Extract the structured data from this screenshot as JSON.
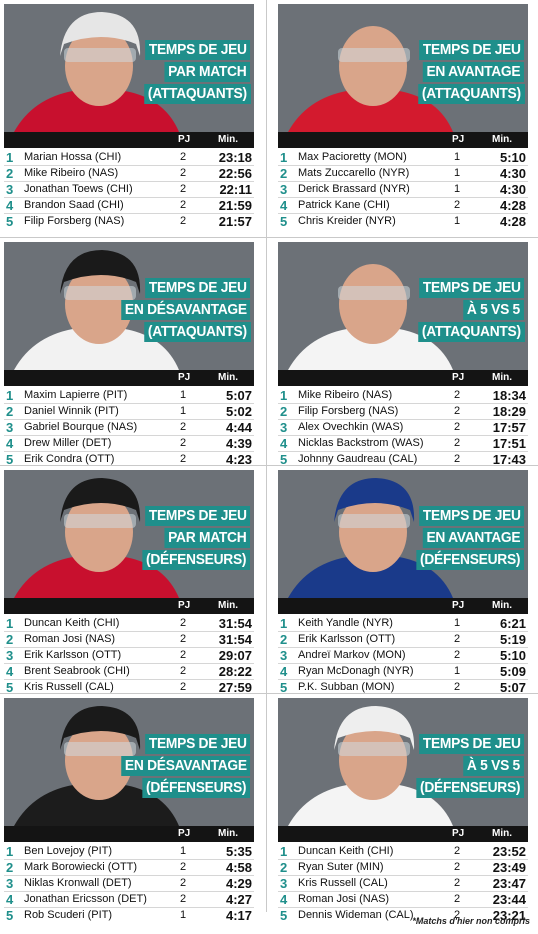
{
  "table_headers": {
    "pj": "PJ",
    "min": "Min."
  },
  "footnote": "*Matchs d'hier non compris",
  "panels": [
    {
      "title": [
        "TEMPS DE JEU",
        "PAR MATCH",
        "(ATTAQUANTS)"
      ],
      "photo": "player-photo-hossa",
      "jersey_color": "#c8102e",
      "rows": [
        {
          "rank": "1",
          "name": "Marian Hossa (CHI)",
          "gp": "2",
          "time": "23:18"
        },
        {
          "rank": "2",
          "name": "Mike Ribeiro (NAS)",
          "gp": "2",
          "time": "22:56"
        },
        {
          "rank": "3",
          "name": "Jonathan Toews (CHI)",
          "gp": "2",
          "time": "22:11"
        },
        {
          "rank": "4",
          "name": "Brandon Saad (CHI)",
          "gp": "2",
          "time": "21:59"
        },
        {
          "rank": "5",
          "name": "Filip Forsberg (NAS)",
          "gp": "2",
          "time": "21:57"
        }
      ]
    },
    {
      "title": [
        "TEMPS DE JEU",
        "EN AVANTAGE",
        "(ATTAQUANTS)"
      ],
      "photo": "player-photo-pacioretty",
      "jersey_color": "#d31a2e",
      "rows": [
        {
          "rank": "1",
          "name": "Max Pacioretty (MON)",
          "gp": "1",
          "time": "5:10"
        },
        {
          "rank": "2",
          "name": "Mats Zuccarello (NYR)",
          "gp": "1",
          "time": "4:30"
        },
        {
          "rank": "3",
          "name": "Derick Brassard (NYR)",
          "gp": "1",
          "time": "4:30"
        },
        {
          "rank": "4",
          "name": "Patrick Kane (CHI)",
          "gp": "2",
          "time": "4:28"
        },
        {
          "rank": "5",
          "name": "Chris Kreider (NYR)",
          "gp": "1",
          "time": "4:28"
        }
      ]
    },
    {
      "title": [
        "TEMPS DE JEU",
        "EN DÉSAVANTAGE",
        "(ATTAQUANTS)"
      ],
      "photo": "player-photo-lapierre",
      "jersey_color": "#f2f2f2",
      "rows": [
        {
          "rank": "1",
          "name": "Maxim Lapierre (PIT)",
          "gp": "1",
          "time": "5:07"
        },
        {
          "rank": "2",
          "name": "Daniel Winnik (PIT)",
          "gp": "1",
          "time": "5:02"
        },
        {
          "rank": "3",
          "name": "Gabriel Bourque (NAS)",
          "gp": "2",
          "time": "4:44"
        },
        {
          "rank": "4",
          "name": "Drew Miller (DET)",
          "gp": "2",
          "time": "4:39"
        },
        {
          "rank": "5",
          "name": "Erik Condra (OTT)",
          "gp": "2",
          "time": "4:23"
        }
      ]
    },
    {
      "title": [
        "TEMPS DE JEU",
        "À 5 VS 5",
        "(ATTAQUANTS)"
      ],
      "photo": "player-photo-ribeiro",
      "jersey_color": "#f4f4f4",
      "rows": [
        {
          "rank": "1",
          "name": "Mike Ribeiro (NAS)",
          "gp": "2",
          "time": "18:34"
        },
        {
          "rank": "2",
          "name": "Filip Forsberg (NAS)",
          "gp": "2",
          "time": "18:29"
        },
        {
          "rank": "3",
          "name": "Alex Ovechkin (WAS)",
          "gp": "2",
          "time": "17:57"
        },
        {
          "rank": "4",
          "name": "Nicklas Backstrom (WAS)",
          "gp": "2",
          "time": "17:51"
        },
        {
          "rank": "5",
          "name": "Johnny Gaudreau (CAL)",
          "gp": "2",
          "time": "17:43"
        }
      ]
    },
    {
      "title": [
        "TEMPS DE JEU",
        "PAR MATCH",
        "(DÉFENSEURS)"
      ],
      "photo": "player-photo-keith",
      "jersey_color": "#c8102e",
      "rows": [
        {
          "rank": "1",
          "name": "Duncan Keith (CHI)",
          "gp": "2",
          "time": "31:54"
        },
        {
          "rank": "2",
          "name": "Roman Josi (NAS)",
          "gp": "2",
          "time": "31:54"
        },
        {
          "rank": "3",
          "name": "Erik Karlsson (OTT)",
          "gp": "2",
          "time": "29:07"
        },
        {
          "rank": "4",
          "name": "Brent Seabrook (CHI)",
          "gp": "2",
          "time": "28:22"
        },
        {
          "rank": "5",
          "name": "Kris Russell (CAL)",
          "gp": "2",
          "time": "27:59"
        }
      ]
    },
    {
      "title": [
        "TEMPS DE JEU",
        "EN AVANTAGE",
        "(DÉFENSEURS)"
      ],
      "photo": "player-photo-yandle",
      "jersey_color": "#1a3a8a",
      "rows": [
        {
          "rank": "1",
          "name": "Keith Yandle (NYR)",
          "gp": "1",
          "time": "6:21"
        },
        {
          "rank": "2",
          "name": "Erik Karlsson (OTT)",
          "gp": "2",
          "time": "5:19"
        },
        {
          "rank": "3",
          "name": "Andreï Markov (MON)",
          "gp": "2",
          "time": "5:10"
        },
        {
          "rank": "4",
          "name": "Ryan McDonagh (NYR)",
          "gp": "1",
          "time": "5:09"
        },
        {
          "rank": "5",
          "name": "P.K. Subban (MON)",
          "gp": "2",
          "time": "5:07"
        }
      ]
    },
    {
      "title": [
        "TEMPS DE JEU",
        "EN DÉSAVANTAGE",
        "(DÉFENSEURS)"
      ],
      "photo": "player-photo-lovejoy",
      "jersey_color": "#1c1c1c",
      "rows": [
        {
          "rank": "1",
          "name": "Ben Lovejoy (PIT)",
          "gp": "1",
          "time": "5:35"
        },
        {
          "rank": "2",
          "name": "Mark Borowiecki (OTT)",
          "gp": "2",
          "time": "4:58"
        },
        {
          "rank": "3",
          "name": "Niklas Kronwall (DET)",
          "gp": "2",
          "time": "4:29"
        },
        {
          "rank": "4",
          "name": "Jonathan Ericsson (DET)",
          "gp": "2",
          "time": "4:27"
        },
        {
          "rank": "5",
          "name": "Rob Scuderi (PIT)",
          "gp": "1",
          "time": "4:17"
        }
      ]
    },
    {
      "title": [
        "TEMPS DE JEU",
        "À 5 VS 5",
        "(DÉFENSEURS)"
      ],
      "photo": "player-photo-keith-white",
      "jersey_color": "#f4f4f4",
      "rows": [
        {
          "rank": "1",
          "name": "Duncan Keith (CHI)",
          "gp": "2",
          "time": "23:52"
        },
        {
          "rank": "2",
          "name": "Ryan Suter (MIN)",
          "gp": "2",
          "time": "23:49"
        },
        {
          "rank": "3",
          "name": "Kris Russell (CAL)",
          "gp": "2",
          "time": "23:47"
        },
        {
          "rank": "4",
          "name": "Roman Josi (NAS)",
          "gp": "2",
          "time": "23:44"
        },
        {
          "rank": "5",
          "name": "Dennis Wideman (CAL)",
          "gp": "2",
          "time": "23:21"
        }
      ]
    }
  ]
}
